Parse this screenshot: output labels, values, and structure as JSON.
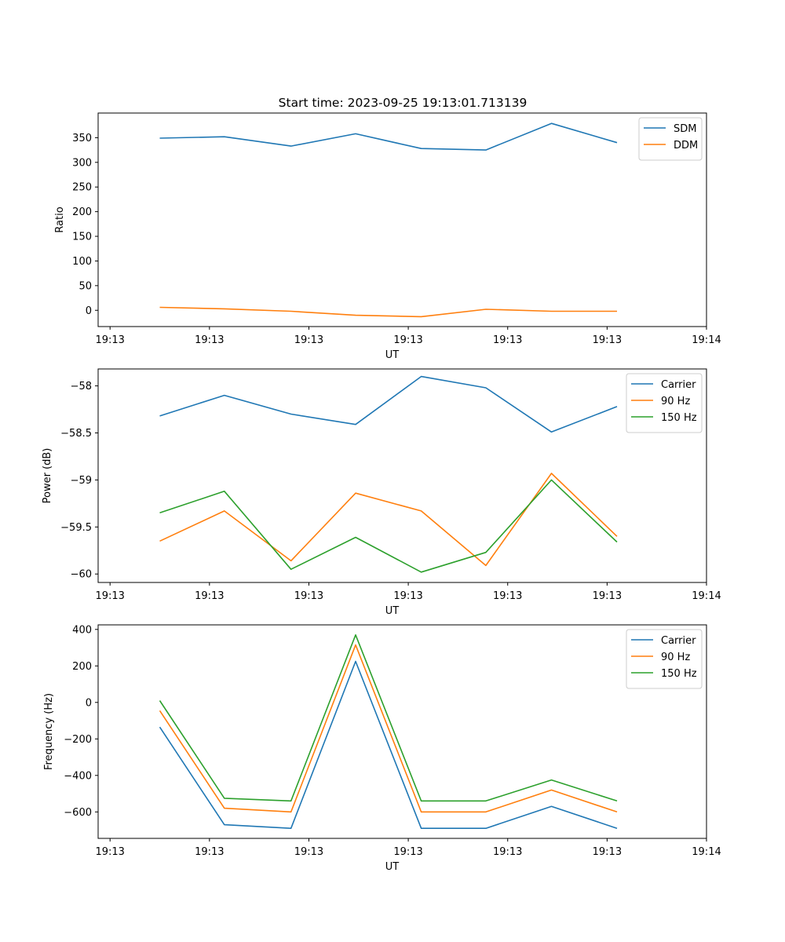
{
  "figure": {
    "title": "Start time: 2023-09-25 19:13:01.713139"
  },
  "chart_data": [
    {
      "type": "line",
      "title": "Start time: 2023-09-25 19:13:01.713139",
      "xlabel": "UT",
      "ylabel": "Ratio",
      "x_ticks": [
        "19:13",
        "19:13",
        "19:13",
        "19:13",
        "19:13",
        "19:13",
        "19:14"
      ],
      "x_tick_positions": [
        0,
        1,
        2,
        3,
        4,
        5,
        6
      ],
      "xlim": [
        -0.12,
        6.0
      ],
      "x": [
        0.5,
        1.15,
        1.82,
        2.47,
        3.13,
        3.78,
        4.44,
        5.1
      ],
      "ylim": [
        -33,
        400
      ],
      "yticks": [
        0,
        50,
        100,
        150,
        200,
        250,
        300,
        350
      ],
      "legend_position": "upper-right",
      "series": [
        {
          "name": "SDM",
          "color": "#1f77b4",
          "values": [
            349,
            352,
            333,
            358,
            328,
            325,
            379,
            340
          ]
        },
        {
          "name": "DDM",
          "color": "#ff7f0e",
          "values": [
            6,
            3,
            -2,
            -10,
            -13,
            2,
            -2,
            -2
          ]
        }
      ]
    },
    {
      "type": "line",
      "title": "",
      "xlabel": "UT",
      "ylabel": "Power (dB)",
      "x_ticks": [
        "19:13",
        "19:13",
        "19:13",
        "19:13",
        "19:13",
        "19:13",
        "19:14"
      ],
      "x_tick_positions": [
        0,
        1,
        2,
        3,
        4,
        5,
        6
      ],
      "xlim": [
        -0.12,
        6.0
      ],
      "x": [
        0.5,
        1.15,
        1.82,
        2.47,
        3.13,
        3.78,
        4.44,
        5.1
      ],
      "ylim": [
        -60.09,
        -57.82
      ],
      "yticks": [
        -60.0,
        -59.5,
        -59.0,
        -58.5,
        -58.0
      ],
      "legend_position": "upper-right",
      "series": [
        {
          "name": "Carrier",
          "color": "#1f77b4",
          "values": [
            -58.32,
            -58.1,
            -58.3,
            -58.41,
            -57.9,
            -58.02,
            -58.49,
            -58.22
          ]
        },
        {
          "name": "90 Hz",
          "color": "#ff7f0e",
          "values": [
            -59.65,
            -59.33,
            -59.86,
            -59.14,
            -59.33,
            -59.91,
            -58.93,
            -59.6
          ]
        },
        {
          "name": "150 Hz",
          "color": "#2ca02c",
          "values": [
            -59.35,
            -59.12,
            -59.95,
            -59.61,
            -59.98,
            -59.77,
            -59.0,
            -59.66
          ]
        }
      ]
    },
    {
      "type": "line",
      "title": "",
      "xlabel": "UT",
      "ylabel": "Frequency (Hz)",
      "x_ticks": [
        "19:13",
        "19:13",
        "19:13",
        "19:13",
        "19:13",
        "19:13",
        "19:14"
      ],
      "x_tick_positions": [
        0,
        1,
        2,
        3,
        4,
        5,
        6
      ],
      "xlim": [
        -0.12,
        6.0
      ],
      "x": [
        0.5,
        1.15,
        1.82,
        2.47,
        3.13,
        3.78,
        4.44,
        5.1
      ],
      "ylim": [
        -745,
        425
      ],
      "yticks": [
        -600,
        -400,
        -200,
        0,
        200,
        400
      ],
      "legend_position": "upper-right",
      "series": [
        {
          "name": "Carrier",
          "color": "#1f77b4",
          "values": [
            -135,
            -670,
            -690,
            225,
            -690,
            -690,
            -570,
            -690
          ]
        },
        {
          "name": "90 Hz",
          "color": "#ff7f0e",
          "values": [
            -45,
            -580,
            -600,
            315,
            -600,
            -600,
            -480,
            -600
          ]
        },
        {
          "name": "150 Hz",
          "color": "#2ca02c",
          "values": [
            10,
            -525,
            -540,
            370,
            -540,
            -540,
            -425,
            -540
          ]
        }
      ]
    }
  ]
}
